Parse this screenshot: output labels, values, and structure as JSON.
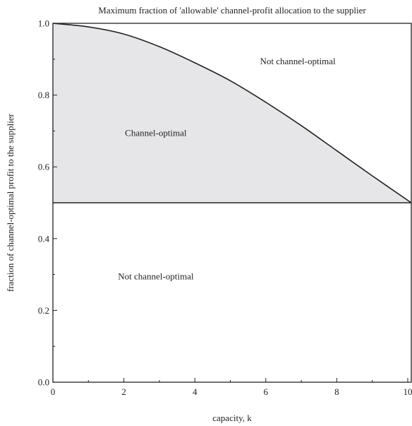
{
  "chart_data": {
    "type": "area",
    "title": "Maximum fraction of 'allowable' channel-profit allocation to the supplier",
    "xlabel": "capacity, k",
    "ylabel": "fraction of channel-optimal profit to the supplier",
    "xlim": [
      0,
      10.1
    ],
    "ylim": [
      0,
      1.0
    ],
    "x_ticks": [
      0,
      2,
      4,
      6,
      8,
      10
    ],
    "x_tick_labels": [
      "0",
      "2",
      "4",
      "6",
      "8",
      "10"
    ],
    "y_ticks": [
      0,
      0.2,
      0.4,
      0.6,
      0.8,
      1.0
    ],
    "y_tick_labels": [
      "0.0",
      "0.2",
      "0.4",
      "0.6",
      "0.8",
      "1.0"
    ],
    "grid": false,
    "baseline": 0.5,
    "series": [
      {
        "x": [
          0,
          1,
          2,
          3,
          4,
          5,
          6,
          7,
          8,
          9,
          10.1
        ],
        "values": [
          1.0,
          0.99,
          0.97,
          0.935,
          0.89,
          0.84,
          0.78,
          0.715,
          0.645,
          0.575,
          0.5
        ]
      }
    ],
    "annotations": [
      {
        "text": "Not channel-optimal",
        "x": 6.9,
        "y": 0.895
      },
      {
        "text": "Channel-optimal",
        "x": 2.9,
        "y": 0.695
      },
      {
        "text": "Not channel-optimal",
        "x": 2.9,
        "y": 0.295
      }
    ],
    "colors": {
      "fill": "#e6e6e8",
      "line": "#222222",
      "axis": "#222222"
    }
  }
}
